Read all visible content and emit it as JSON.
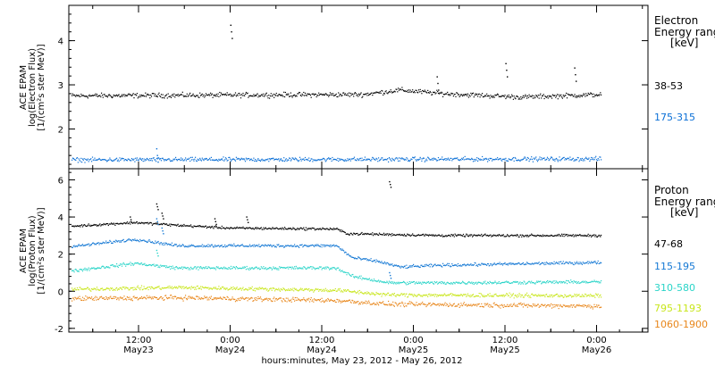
{
  "chart_data": [
    {
      "type": "scatter",
      "panel": "electron",
      "ylabel": [
        "ACE EPAM",
        "log(Electron Flux)",
        "[1/(cm²s ster MeV)]"
      ],
      "ylim": [
        1.1,
        4.8
      ],
      "y_ticks": [
        2,
        3,
        4
      ],
      "y_tick_labels": [
        "2",
        "3",
        "4"
      ],
      "legend_title": [
        "Electron",
        "Energy range"
      ],
      "legend_unit": "[keV]",
      "grid": false,
      "series": [
        {
          "name": "38-53",
          "color": "#000000",
          "base": 2.75,
          "noise": 0.08,
          "trend": [
            [
              0,
              2.75
            ],
            [
              0.55,
              2.78
            ],
            [
              0.62,
              2.88
            ],
            [
              0.7,
              2.8
            ],
            [
              0.85,
              2.72
            ],
            [
              1,
              2.78
            ]
          ],
          "spikes": [
            [
              0.3,
              4.35
            ],
            [
              0.69,
              3.18
            ],
            [
              0.82,
              3.48
            ],
            [
              0.95,
              3.38
            ]
          ]
        },
        {
          "name": "175-315",
          "color": "#0a6fd6",
          "base": 1.3,
          "noise": 0.07,
          "trend": [
            [
              0,
              1.3
            ],
            [
              1,
              1.32
            ]
          ],
          "spikes": [
            [
              0.16,
              1.55
            ]
          ]
        }
      ]
    },
    {
      "type": "scatter",
      "panel": "proton",
      "ylabel": [
        "ACE EPAM",
        "log(Proton Flux)",
        "[1/(cm²s ster MeV)]"
      ],
      "ylim": [
        -2.2,
        6.6
      ],
      "y_ticks": [
        -2,
        0,
        2,
        4,
        6
      ],
      "y_tick_labels": [
        "-2",
        "0",
        "2",
        "4",
        "6"
      ],
      "legend_title": [
        "Proton",
        "Energy range"
      ],
      "legend_unit": "[keV]",
      "grid": false,
      "series": [
        {
          "name": "47-68",
          "color": "#000000",
          "base": 3.4,
          "noise": 0.1,
          "trend": [
            [
              0,
              3.5
            ],
            [
              0.12,
              3.7
            ],
            [
              0.2,
              3.55
            ],
            [
              0.3,
              3.4
            ],
            [
              0.5,
              3.35
            ],
            [
              0.52,
              3.1
            ],
            [
              0.7,
              3.0
            ],
            [
              1,
              3.0
            ]
          ],
          "spikes": [
            [
              0.16,
              4.7
            ],
            [
              0.17,
              4.2
            ],
            [
              0.11,
              4.0
            ],
            [
              0.33,
              4.0
            ],
            [
              0.27,
              3.9
            ],
            [
              0.6,
              5.9
            ]
          ]
        },
        {
          "name": "115-195",
          "color": "#1478d4",
          "base": 2.4,
          "noise": 0.12,
          "trend": [
            [
              0,
              2.4
            ],
            [
              0.12,
              2.8
            ],
            [
              0.2,
              2.45
            ],
            [
              0.5,
              2.45
            ],
            [
              0.53,
              1.8
            ],
            [
              0.58,
              1.6
            ],
            [
              0.62,
              1.3
            ],
            [
              0.7,
              1.4
            ],
            [
              1,
              1.55
            ]
          ],
          "spikes": [
            [
              0.16,
              3.9
            ],
            [
              0.17,
              3.4
            ],
            [
              0.6,
              1.0
            ]
          ]
        },
        {
          "name": "310-580",
          "color": "#2ad4c8",
          "base": 1.2,
          "noise": 0.13,
          "trend": [
            [
              0,
              1.1
            ],
            [
              0.12,
              1.5
            ],
            [
              0.2,
              1.25
            ],
            [
              0.5,
              1.25
            ],
            [
              0.53,
              0.8
            ],
            [
              0.6,
              0.45
            ],
            [
              0.7,
              0.45
            ],
            [
              1,
              0.5
            ]
          ],
          "spikes": [
            [
              0.16,
              2.2
            ]
          ]
        },
        {
          "name": "795-1193",
          "color": "#c8e61a",
          "base": 0.0,
          "noise": 0.15,
          "trend": [
            [
              0,
              0.1
            ],
            [
              0.2,
              0.2
            ],
            [
              0.5,
              0.05
            ],
            [
              0.6,
              -0.2
            ],
            [
              1,
              -0.25
            ]
          ],
          "spikes": []
        },
        {
          "name": "1060-1900",
          "color": "#e8861a",
          "base": -0.5,
          "noise": 0.18,
          "trend": [
            [
              0,
              -0.4
            ],
            [
              0.2,
              -0.35
            ],
            [
              0.5,
              -0.5
            ],
            [
              0.6,
              -0.7
            ],
            [
              1,
              -0.8
            ]
          ],
          "spikes": []
        }
      ]
    }
  ],
  "x_axis": {
    "label": "hours:minutes, May 23, 2012 - May 26, 2012",
    "ticks": [
      {
        "time": "12:00",
        "date": "May23"
      },
      {
        "time": "0:00",
        "date": "May24"
      },
      {
        "time": "12:00",
        "date": "May24"
      },
      {
        "time": "0:00",
        "date": "May25"
      },
      {
        "time": "12:00",
        "date": "May25"
      },
      {
        "time": "0:00",
        "date": "May26"
      }
    ]
  }
}
